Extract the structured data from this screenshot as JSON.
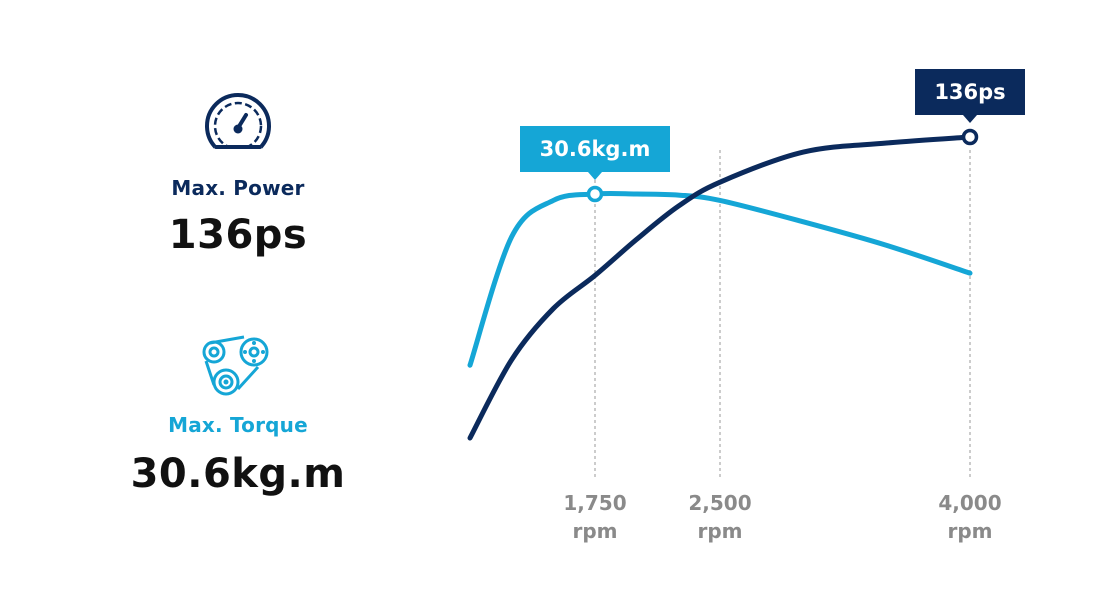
{
  "specs": {
    "power": {
      "label": "Max. Power",
      "value": "136ps",
      "icon": "speedometer-icon"
    },
    "torque": {
      "label": "Max. Torque",
      "value": "30.6kg.m",
      "icon": "belt-pulley-icon"
    }
  },
  "colors": {
    "power": "#0b2a5c",
    "torque": "#15a6d6",
    "tick": "#8a8a8a"
  },
  "chart_data": {
    "type": "line",
    "x_unit": "rpm",
    "xlim": [
      1000,
      4000
    ],
    "ticks": [
      {
        "value": 1750,
        "label": "1,750",
        "unit": "rpm"
      },
      {
        "value": 2500,
        "label": "2,500",
        "unit": "rpm"
      },
      {
        "value": 4000,
        "label": "4,000",
        "unit": "rpm"
      }
    ],
    "series": [
      {
        "key": "torque",
        "points": [
          [
            1000,
            0.2
          ],
          [
            1250,
            0.8
          ],
          [
            1500,
            0.97
          ],
          [
            1750,
            1.0
          ],
          [
            2000,
            1.0
          ],
          [
            2250,
            0.995
          ],
          [
            2500,
            0.97
          ],
          [
            3000,
            0.87
          ],
          [
            3500,
            0.76
          ],
          [
            4000,
            0.63
          ]
        ],
        "peak": {
          "x": 1750,
          "label": "30.6kg.m"
        }
      },
      {
        "key": "power",
        "points": [
          [
            1000,
            0.0
          ],
          [
            1250,
            0.26
          ],
          [
            1500,
            0.43
          ],
          [
            1750,
            0.54
          ],
          [
            2000,
            0.66
          ],
          [
            2250,
            0.77
          ],
          [
            2500,
            0.85
          ],
          [
            3000,
            0.95
          ],
          [
            3500,
            0.98
          ],
          [
            4000,
            1.0
          ]
        ],
        "peak": {
          "x": 4000,
          "label": "136ps"
        }
      }
    ]
  }
}
